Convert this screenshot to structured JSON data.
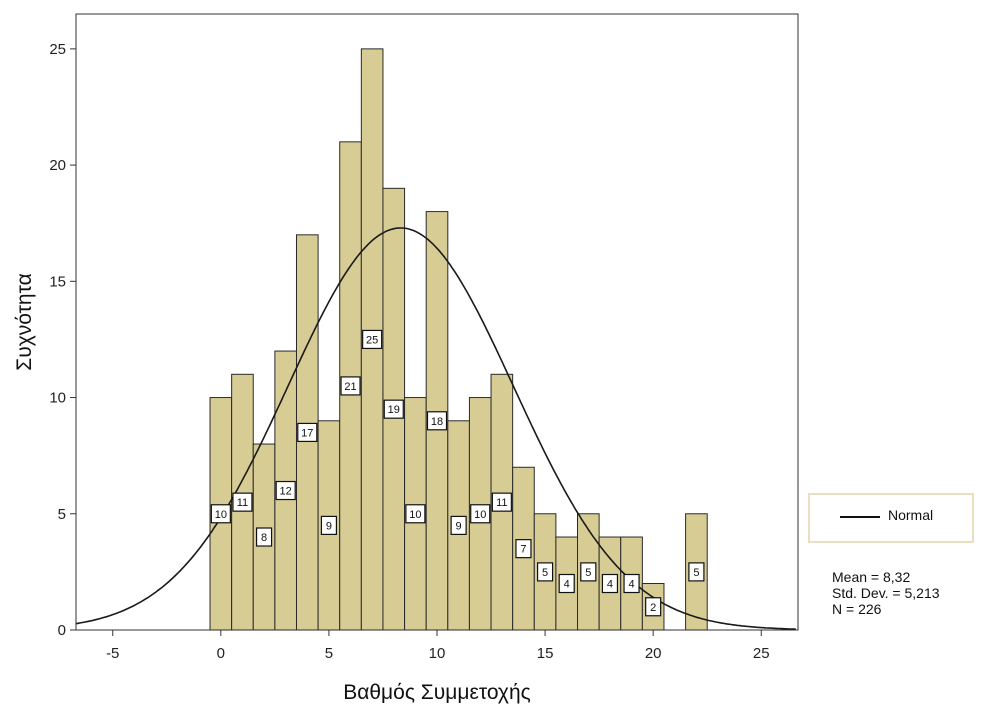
{
  "chart_data": {
    "type": "bar",
    "x": [
      0,
      1,
      2,
      3,
      4,
      5,
      6,
      7,
      8,
      9,
      10,
      11,
      12,
      13,
      14,
      15,
      16,
      17,
      18,
      19,
      20,
      22
    ],
    "values": [
      10,
      11,
      8,
      12,
      17,
      9,
      21,
      25,
      19,
      10,
      18,
      9,
      10,
      11,
      7,
      5,
      4,
      5,
      4,
      4,
      2,
      5
    ],
    "data_labels": [
      "10",
      "11",
      "8",
      "12",
      "17",
      "9",
      "21",
      "25",
      "19",
      "10",
      "18",
      "9",
      "10",
      "11",
      "7",
      "5",
      "4",
      "5",
      "4",
      "4",
      "2",
      "5"
    ],
    "xlabel": "Βαθμός Συμμετοχής",
    "ylabel": "Συχνότητα",
    "xlim": [
      -6.7,
      26.7
    ],
    "ylim": [
      0,
      26.5
    ],
    "x_ticks": [
      -5,
      0,
      5,
      10,
      15,
      20,
      25
    ],
    "y_ticks": [
      0,
      5,
      10,
      15,
      20,
      25
    ],
    "grid": false,
    "bar_color": "#d8cc95",
    "legend": {
      "entries": [
        "Normal"
      ],
      "position": "right"
    },
    "normal_curve": {
      "mean": 8.32,
      "std_dev": 5.213,
      "n": 226
    },
    "stats_lines": [
      "Mean = 8,32",
      "Std. Dev. = 5,213",
      "N = 226"
    ]
  }
}
